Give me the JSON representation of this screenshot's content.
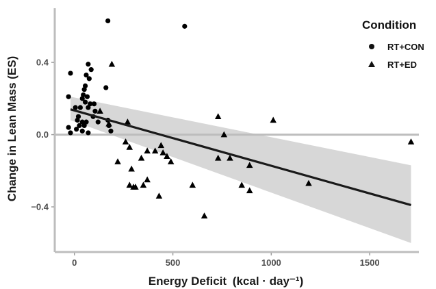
{
  "chart_data": {
    "type": "scatter",
    "xlabel": "Energy Deficit",
    "xlabel_unit": "(kcal · day⁻¹)",
    "ylabel": "Change in Lean Mass (ES)",
    "xlim": [
      -100,
      1750
    ],
    "ylim": [
      -0.65,
      0.7
    ],
    "x_ticks": [
      0,
      500,
      1000,
      1500
    ],
    "y_ticks": [
      -0.4,
      0.0,
      0.4
    ],
    "x_tick_labels": [
      "0",
      "500",
      "1000",
      "1500"
    ],
    "y_tick_labels": [
      "−0.4",
      "0.0",
      "0.4"
    ],
    "grid": false,
    "reference_line_y": 0.0,
    "legend": {
      "title": "Condition",
      "placement": "top-right",
      "entries": [
        {
          "label": "RT+CON",
          "marker": "circle"
        },
        {
          "label": "RT+ED",
          "marker": "triangle"
        }
      ]
    },
    "series": [
      {
        "name": "RT+CON",
        "marker": "circle",
        "x": [
          170,
          560,
          -30,
          -20,
          70,
          85,
          60,
          75,
          55,
          50,
          45,
          40,
          55,
          65,
          70,
          80,
          100,
          105,
          95,
          160,
          170,
          175,
          185,
          30,
          5,
          20,
          -30,
          -20,
          40,
          50,
          60,
          70,
          120,
          15,
          25,
          40,
          10
        ],
        "y": [
          0.63,
          0.6,
          0.21,
          0.34,
          0.39,
          0.36,
          0.33,
          0.31,
          0.27,
          0.25,
          0.22,
          0.2,
          0.18,
          0.21,
          0.15,
          0.17,
          0.17,
          0.13,
          0.1,
          0.26,
          0.08,
          0.05,
          0.02,
          0.15,
          0.15,
          0.1,
          0.04,
          0.01,
          0.07,
          0.05,
          0.07,
          0.01,
          0.07,
          0.08,
          0.05,
          0.02,
          0.03
        ]
      },
      {
        "name": "RT+ED",
        "marker": "triangle",
        "x": [
          190,
          130,
          175,
          270,
          220,
          260,
          280,
          290,
          300,
          350,
          370,
          410,
          440,
          450,
          470,
          490,
          370,
          340,
          280,
          310,
          430,
          600,
          660,
          730,
          760,
          730,
          790,
          850,
          890,
          890,
          1010,
          1190,
          1710
        ],
        "y": [
          0.39,
          0.13,
          0.06,
          0.07,
          -0.15,
          -0.04,
          -0.07,
          -0.19,
          -0.29,
          -0.28,
          -0.25,
          -0.09,
          -0.06,
          -0.1,
          -0.12,
          -0.15,
          -0.09,
          -0.13,
          -0.28,
          -0.29,
          -0.34,
          -0.28,
          -0.45,
          0.1,
          0.0,
          -0.13,
          -0.13,
          -0.28,
          -0.31,
          -0.17,
          0.08,
          -0.27,
          -0.04
        ]
      }
    ],
    "fit": {
      "type": "linear",
      "x": [
        -20,
        1710
      ],
      "y": [
        0.14,
        -0.39
      ],
      "ci_lower": [
        0.08,
        -0.6
      ],
      "ci_upper": [
        0.21,
        -0.17
      ]
    }
  }
}
